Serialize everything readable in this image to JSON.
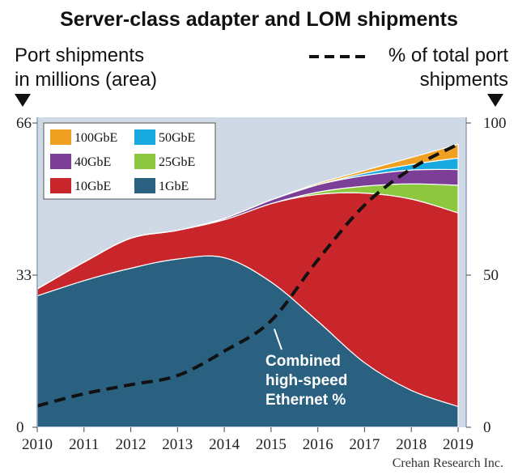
{
  "chart_data": {
    "type": "area",
    "title": "Server-class adapter and LOM shipments",
    "left_axis_label": [
      "Port shipments",
      "in millions (area)"
    ],
    "right_axis_label": [
      "% of total port",
      "shipments"
    ],
    "x": [
      2010,
      2011,
      2012,
      2013,
      2014,
      2015,
      2016,
      2017,
      2018,
      2019
    ],
    "x_ticks": [
      "2010",
      "2011",
      "2012",
      "2013",
      "2014",
      "2015",
      "2016",
      "2017",
      "2018",
      "2019"
    ],
    "left_ticks": [
      "0",
      "33",
      "66"
    ],
    "right_ticks": [
      "0",
      "50",
      "100"
    ],
    "ylim_left": [
      0,
      66
    ],
    "ylim_right": [
      0,
      100
    ],
    "stack_order": [
      "1GbE",
      "10GbE",
      "25GbE",
      "40GbE",
      "50GbE",
      "100GbE"
    ],
    "series": [
      {
        "name": "1GbE",
        "color": "#2a6080",
        "values": [
          28.5,
          31.8,
          34.5,
          36.5,
          36.8,
          31.5,
          23.0,
          14.0,
          8.0,
          4.5
        ]
      },
      {
        "name": "10GbE",
        "color": "#c9262b",
        "values": [
          1.5,
          4.0,
          6.5,
          6.2,
          8.2,
          17.0,
          27.5,
          36.8,
          41.5,
          42.0
        ]
      },
      {
        "name": "25GbE",
        "color": "#8dc63f",
        "values": [
          0,
          0,
          0,
          0,
          0,
          0,
          0.5,
          1.5,
          3.3,
          6.0
        ]
      },
      {
        "name": "40GbE",
        "color": "#7b3f98",
        "values": [
          0,
          0,
          0,
          0,
          0.3,
          0.8,
          1.6,
          2.3,
          3.0,
          3.4
        ]
      },
      {
        "name": "50GbE",
        "color": "#18a9e1",
        "values": [
          0,
          0,
          0,
          0,
          0,
          0,
          0,
          0.5,
          1.2,
          2.5
        ]
      },
      {
        "name": "100GbE",
        "color": "#f0a020",
        "values": [
          0,
          0,
          0,
          0,
          0,
          0,
          0.3,
          0.6,
          1.5,
          3.0
        ]
      }
    ],
    "line_series": {
      "name": "% of total port shipments",
      "values": [
        7,
        11,
        14,
        17,
        25,
        35,
        55,
        73,
        85,
        93
      ]
    },
    "legend_columns": [
      [
        "100GbE",
        "40GbE",
        "10GbE"
      ],
      [
        "50GbE",
        "25GbE",
        "1GbE"
      ]
    ],
    "legend_placement": "top-left",
    "annotation": [
      "Combined",
      "high-speed",
      "Ethernet %"
    ],
    "source": "Crehan Research Inc."
  }
}
